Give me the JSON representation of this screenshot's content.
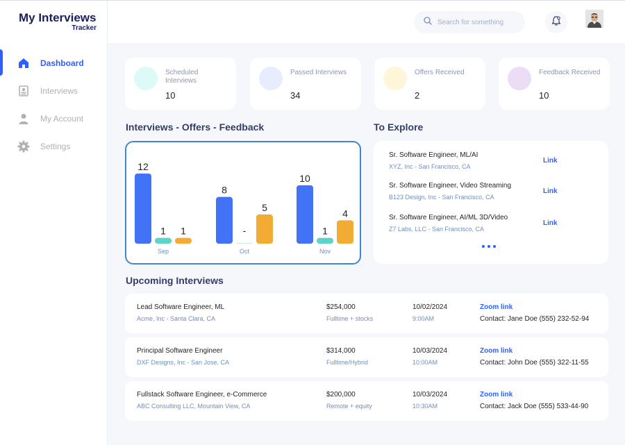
{
  "brand": {
    "title": "My Interviews",
    "subtitle": "Tracker"
  },
  "nav": [
    {
      "label": "Dashboard",
      "icon": "home-icon",
      "active": true
    },
    {
      "label": "Interviews",
      "icon": "interviews-icon"
    },
    {
      "label": "My Account",
      "icon": "user-icon"
    },
    {
      "label": "Settings",
      "icon": "gear-icon"
    }
  ],
  "search": {
    "placeholder": "Search for something"
  },
  "stats": [
    {
      "label": "Scheduled Interviews",
      "value": "10",
      "color": "#dcfaf8"
    },
    {
      "label": "Passed Interviews",
      "value": "34",
      "color": "#e7edff"
    },
    {
      "label": "Offers Received",
      "value": "2",
      "color": "#fff5d9"
    },
    {
      "label": "Feedback Received",
      "value": "10",
      "color": "#eddcf5"
    }
  ],
  "chart_section_title": "Interviews - Offers - Feedback",
  "chart_data": {
    "type": "bar",
    "categories": [
      "Sep",
      "Oct",
      "Nov"
    ],
    "series": [
      {
        "values": [
          12,
          8,
          10
        ],
        "color": "#4272f5"
      },
      {
        "values": [
          1,
          0,
          1
        ],
        "labels": [
          "1",
          "-",
          "1"
        ],
        "color": "#5ed4c8"
      },
      {
        "values": [
          1,
          5,
          4
        ],
        "color": "#f2ac34"
      }
    ]
  },
  "explore": {
    "title": "To Explore",
    "items": [
      {
        "title": "Sr. Software Engineer, ML/AI",
        "company": "XYZ, Inc - San Francisco, CA",
        "link": "Link"
      },
      {
        "title": "Sr. Software Engineer, Video Streaming",
        "company": "B123 Design, Inc - San Francisco, CA",
        "link": "Link"
      },
      {
        "title": "Sr. Software Engineer, AI/ML 3D/Video",
        "company": "Z7 Labs, LLC - San Francisco, CA",
        "link": "Link"
      }
    ]
  },
  "upcoming": {
    "title": "Upcoming Interviews",
    "rows": [
      {
        "title": "Lead Software Engineer, ML",
        "company": "Acme, Inc - Santa Clara, CA",
        "salary": "$254,000",
        "type": "Fulltime + stocks",
        "date": "10/02/2024",
        "time": "9:00AM",
        "link": "Zoom link",
        "contact": "Contact: Jane Doe (555) 232-52-94"
      },
      {
        "title": "Principal Software Engineer",
        "company": "DXF Designs, Inc - San Jose, CA",
        "salary": "$314,000",
        "type": "Fulltime/Hybrid",
        "date": "10/03/2024",
        "time": "10:00AM",
        "link": "Zoom link",
        "contact": "Contact: John Doe (555) 322-11-55"
      },
      {
        "title": "Fullstack Software Engineer, e-Commerce",
        "company": "ABC Consulting LLC, Mountain View, CA",
        "salary": "$200,000",
        "type": "Remote + equity",
        "date": "10/03/2024",
        "time": "10:30AM",
        "link": "Zoom link",
        "contact": "Contact: Jack Doe (555) 533-44-90"
      }
    ]
  }
}
